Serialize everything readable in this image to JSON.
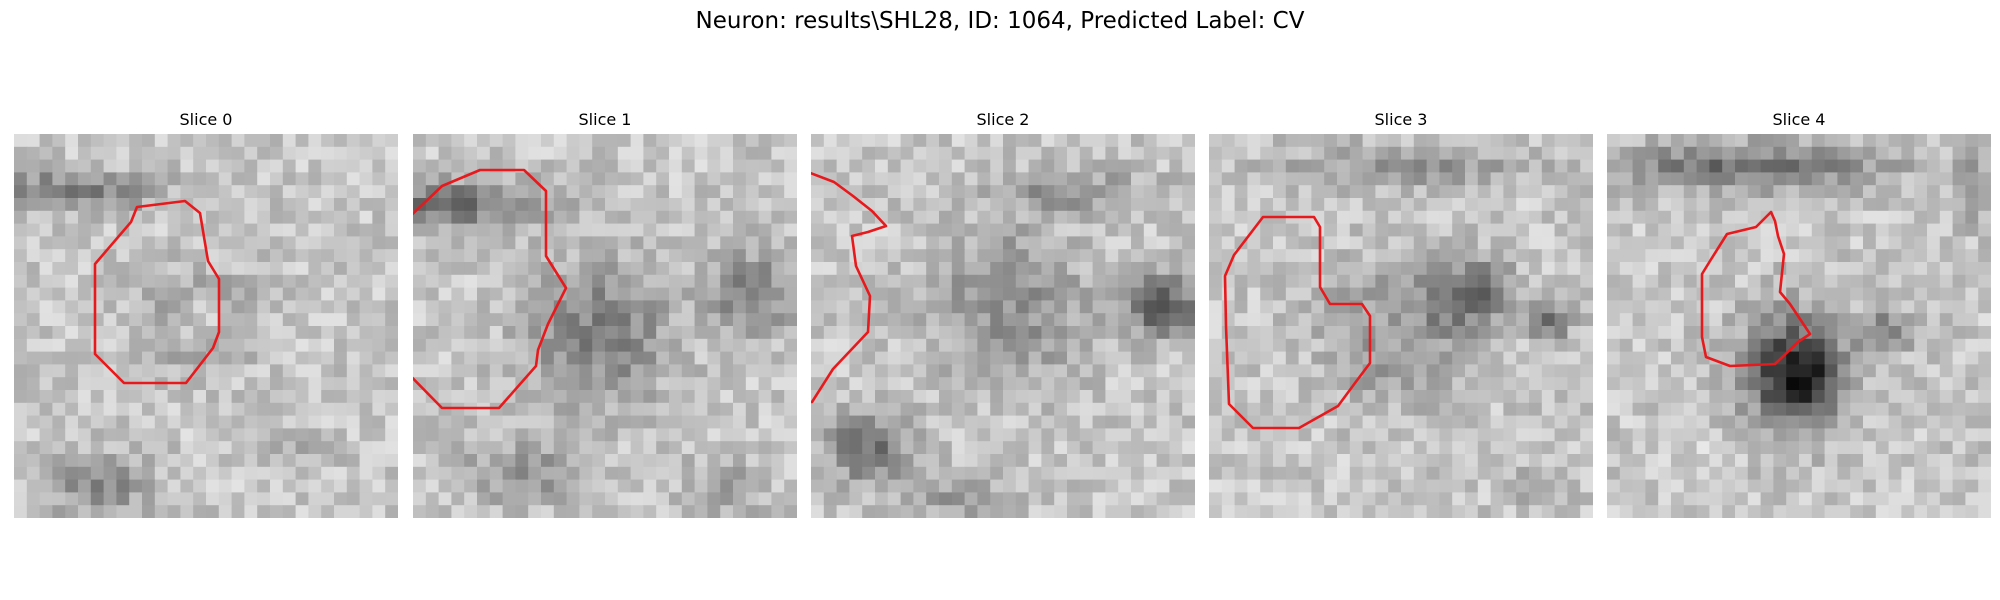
{
  "figure": {
    "title": "Neuron: results\\SHL28, ID: 1064, Predicted Label: CV",
    "contour_color": "#e8191c"
  },
  "slices": [
    {
      "label": "Slice 0"
    },
    {
      "label": "Slice 1"
    },
    {
      "label": "Slice 2"
    },
    {
      "label": "Slice 3"
    },
    {
      "label": "Slice 4"
    }
  ]
}
